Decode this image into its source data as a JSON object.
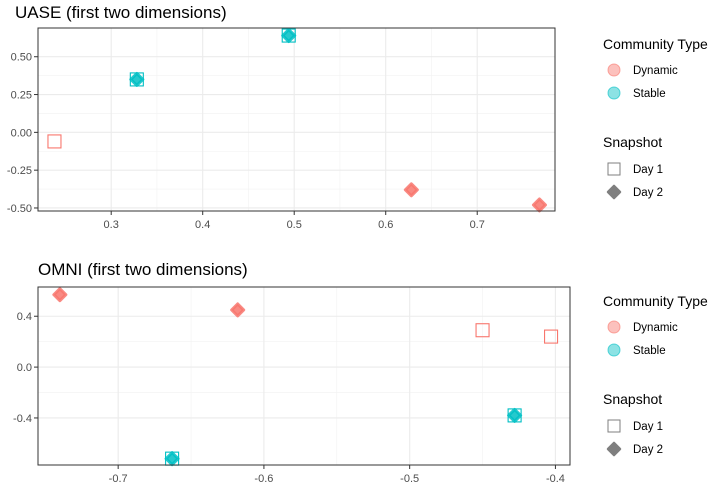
{
  "colors": {
    "dynamic": "#F8766D",
    "stable": "#00BFC4",
    "snapshot": "#7f7f7f"
  },
  "legends": {
    "community": {
      "title": "Community Type",
      "items": [
        "Dynamic",
        "Stable"
      ]
    },
    "snapshot": {
      "title": "Snapshot",
      "items": [
        "Day 1",
        "Day 2"
      ]
    }
  },
  "chart_data": [
    {
      "type": "scatter",
      "title": "UASE (first two dimensions)",
      "xlim": [
        0.22,
        0.785
      ],
      "ylim": [
        -0.52,
        0.69
      ],
      "xticks": [
        0.3,
        0.4,
        0.5,
        0.6,
        0.7
      ],
      "xtick_labels": [
        "0.3",
        "0.4",
        "0.5",
        "0.6",
        "0.7"
      ],
      "yticks": [
        -0.5,
        -0.25,
        0.0,
        0.25,
        0.5
      ],
      "ytick_labels": [
        "-0.50",
        "-0.25",
        "0.00",
        "0.25",
        "0.50"
      ],
      "grid": true,
      "legend_position": "right",
      "points": [
        {
          "x": 0.238,
          "y": -0.06,
          "community": "Dynamic",
          "snapshot": "Day 1"
        },
        {
          "x": 0.628,
          "y": -0.38,
          "community": "Dynamic",
          "snapshot": "Day 2"
        },
        {
          "x": 0.768,
          "y": -0.48,
          "community": "Dynamic",
          "snapshot": "Day 2"
        },
        {
          "x": 0.328,
          "y": 0.35,
          "community": "Stable",
          "snapshot": "Day 1"
        },
        {
          "x": 0.328,
          "y": 0.35,
          "community": "Stable",
          "snapshot": "Day 2"
        },
        {
          "x": 0.494,
          "y": 0.64,
          "community": "Stable",
          "snapshot": "Day 1"
        },
        {
          "x": 0.494,
          "y": 0.64,
          "community": "Stable",
          "snapshot": "Day 2"
        }
      ]
    },
    {
      "type": "scatter",
      "title": "OMNI (first two dimensions)",
      "xlim": [
        -0.755,
        -0.39
      ],
      "ylim": [
        -0.77,
        0.63
      ],
      "xticks": [
        -0.7,
        -0.6,
        -0.5,
        -0.4
      ],
      "xtick_labels": [
        "-0.7",
        "-0.6",
        "-0.5",
        "-0.4"
      ],
      "yticks": [
        -0.4,
        0.0,
        0.4
      ],
      "ytick_labels": [
        "-0.4",
        "0.0",
        "0.4"
      ],
      "grid": true,
      "legend_position": "right",
      "points": [
        {
          "x": -0.74,
          "y": 0.57,
          "community": "Dynamic",
          "snapshot": "Day 2"
        },
        {
          "x": -0.618,
          "y": 0.45,
          "community": "Dynamic",
          "snapshot": "Day 2"
        },
        {
          "x": -0.45,
          "y": 0.29,
          "community": "Dynamic",
          "snapshot": "Day 1"
        },
        {
          "x": -0.403,
          "y": 0.24,
          "community": "Dynamic",
          "snapshot": "Day 1"
        },
        {
          "x": -0.663,
          "y": -0.72,
          "community": "Stable",
          "snapshot": "Day 1"
        },
        {
          "x": -0.663,
          "y": -0.72,
          "community": "Stable",
          "snapshot": "Day 2"
        },
        {
          "x": -0.428,
          "y": -0.38,
          "community": "Stable",
          "snapshot": "Day 1"
        },
        {
          "x": -0.428,
          "y": -0.38,
          "community": "Stable",
          "snapshot": "Day 2"
        }
      ]
    }
  ]
}
